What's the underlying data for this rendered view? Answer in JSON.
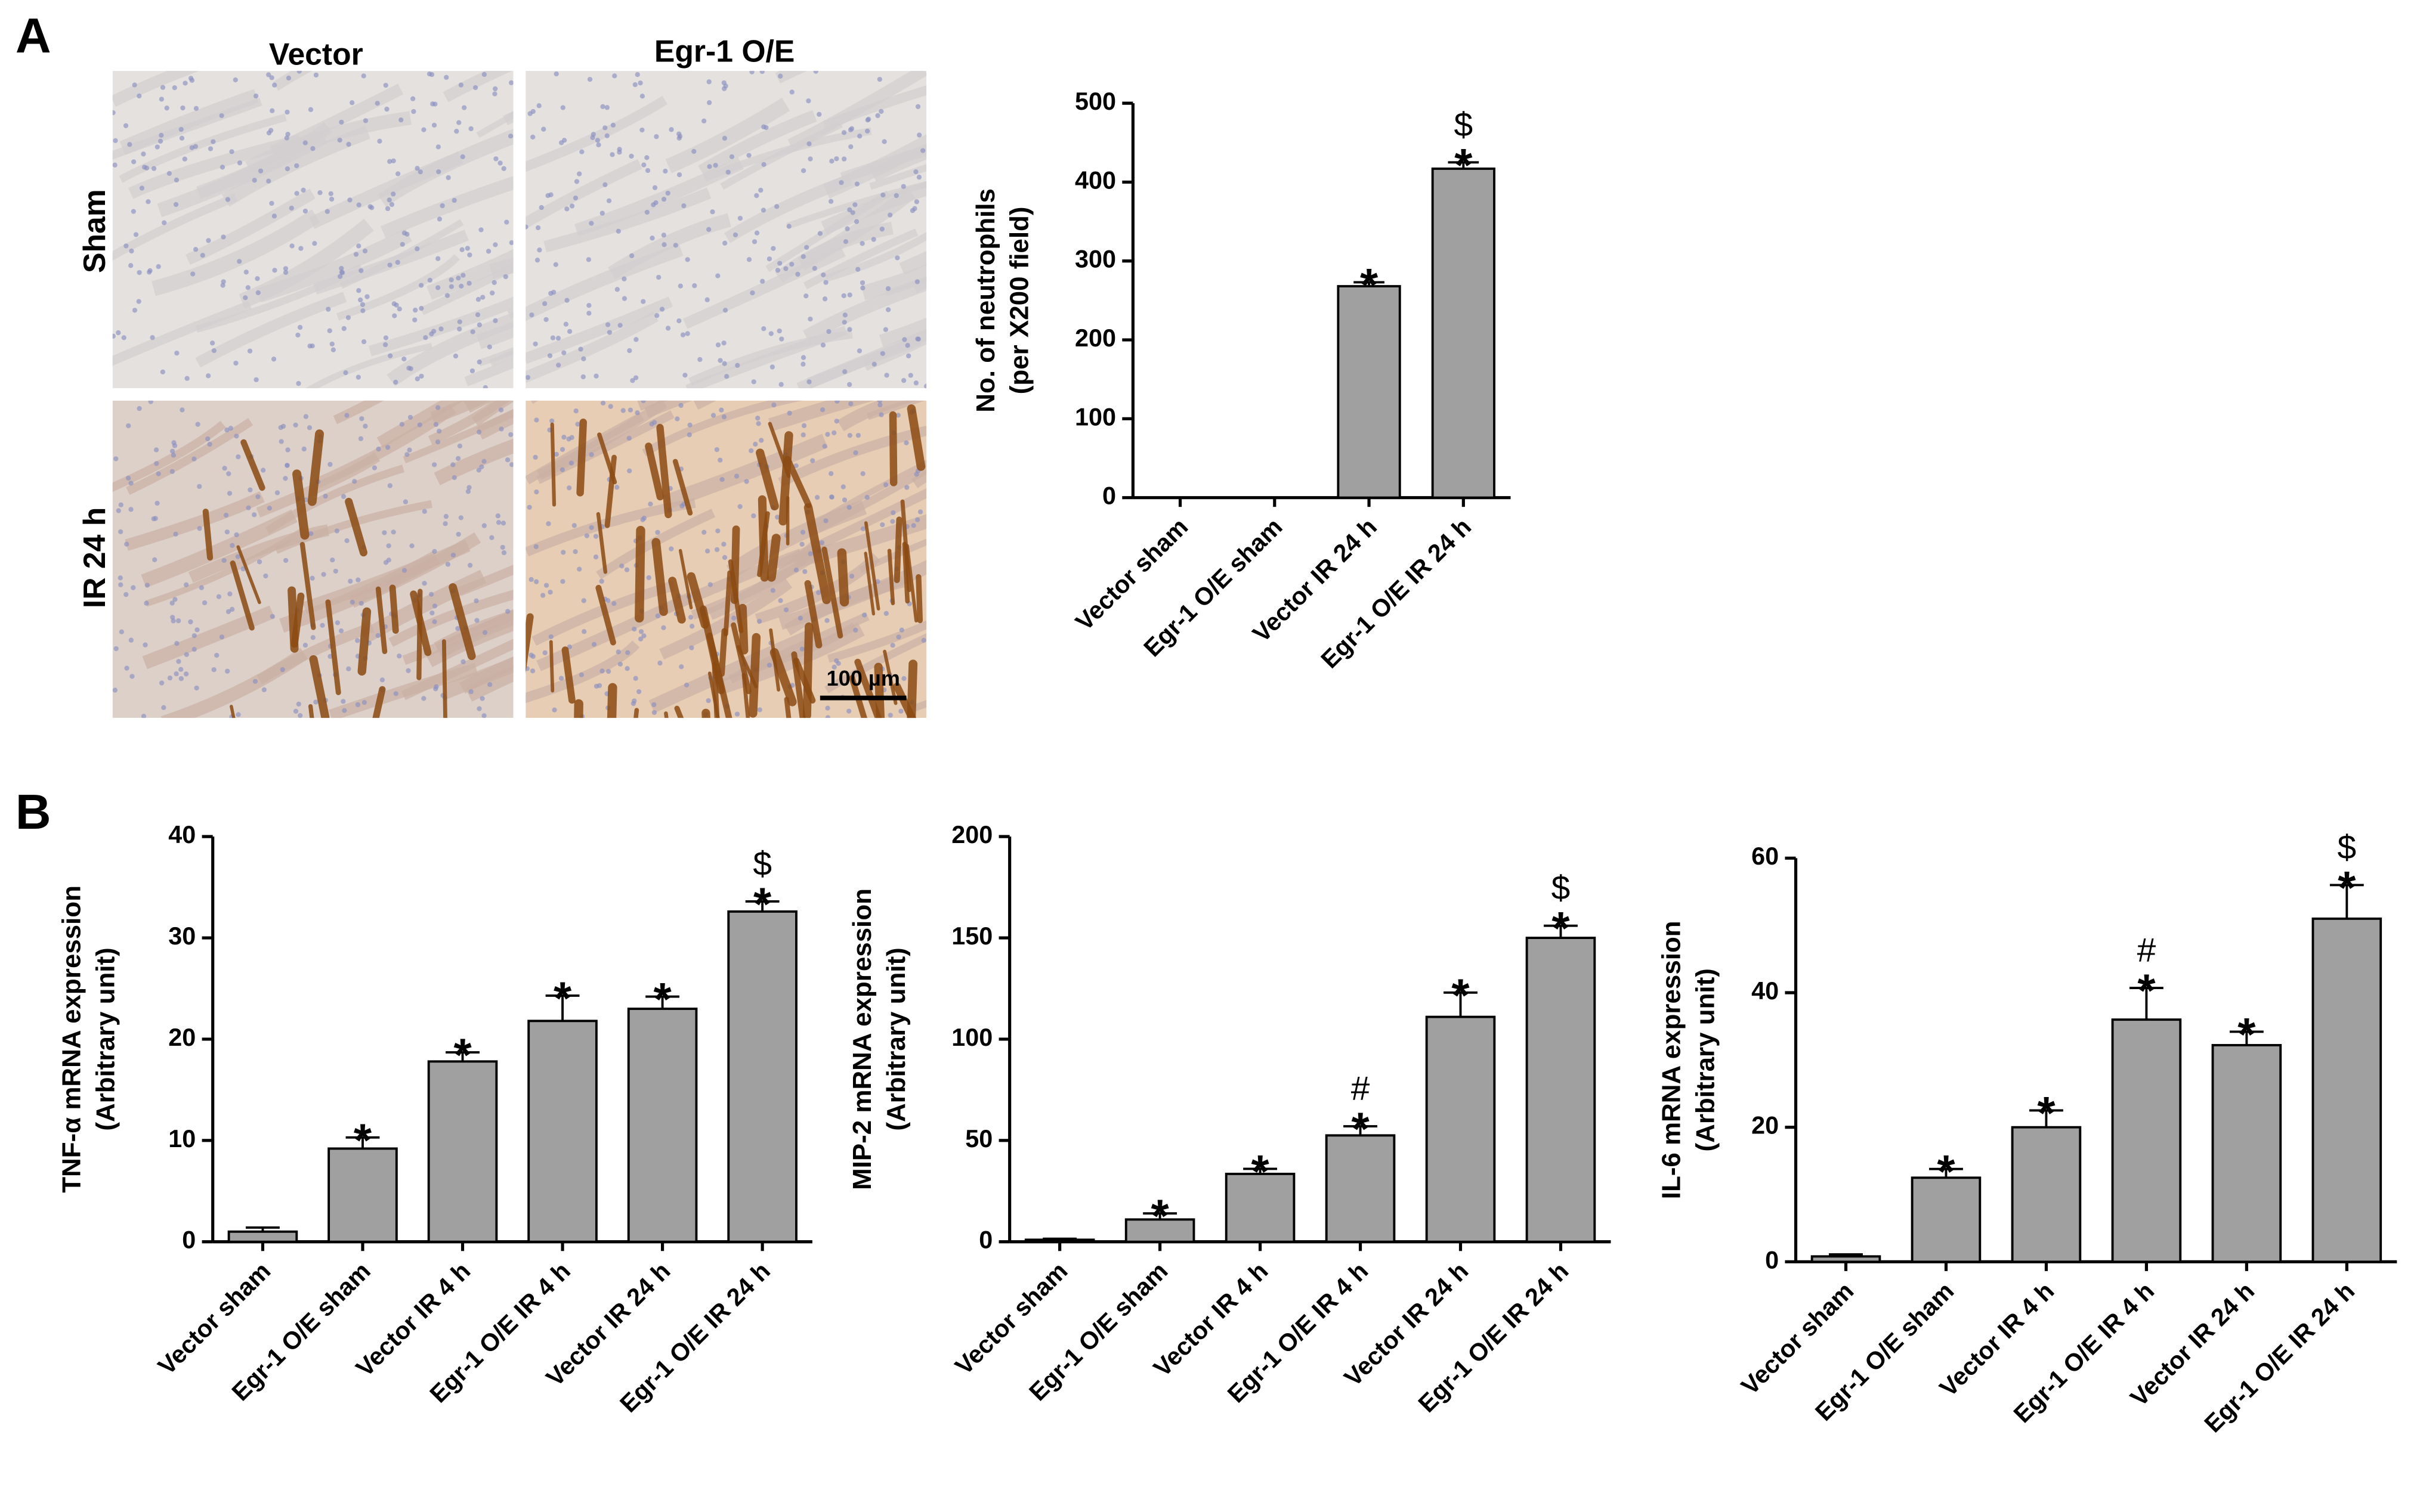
{
  "figure": {
    "panel_labels": [
      "A",
      "B"
    ],
    "micrographs": {
      "columns": [
        "Vector",
        "Egr-1 O/E"
      ],
      "rows": [
        "Sham",
        "IR 24 h"
      ],
      "scale_bar": "100 µm"
    }
  },
  "chart_data": [
    {
      "type": "bar",
      "ylabel": [
        "No. of neutrophils",
        "(per X200 field)"
      ],
      "categories": [
        "Vector sham",
        "Egr-1 O/E sham",
        "Vector IR 24 h",
        "Egr-1 O/E IR 24 h"
      ],
      "values": [
        0,
        0,
        268,
        417
      ],
      "errors": [
        0,
        0,
        5,
        8
      ],
      "annotations": [
        [],
        [],
        [
          "*"
        ],
        [
          "$",
          "*"
        ]
      ],
      "color": "#a0a0a0",
      "ylim": [
        0,
        500
      ],
      "yticks": [
        0,
        100,
        200,
        300,
        400,
        500
      ]
    },
    {
      "type": "bar",
      "ylabel": [
        "TNF-α mRNA expression",
        "(Arbitrary unit)"
      ],
      "categories": [
        "Vector sham",
        "Egr-1 O/E sham",
        "Vector IR 4 h",
        "Egr-1 O/E IR 4 h",
        "Vector IR 24 h",
        "Egr-1 O/E IR 24 h"
      ],
      "values": [
        1,
        9.2,
        17.8,
        21.8,
        23,
        32.6
      ],
      "errors": [
        0.4,
        1.1,
        0.9,
        2.5,
        1.2,
        1.0
      ],
      "annotations": [
        [],
        [
          "*"
        ],
        [
          "*"
        ],
        [
          "*"
        ],
        [
          "*"
        ],
        [
          "$",
          "*"
        ]
      ],
      "color": "#a0a0a0",
      "ylim": [
        0,
        40
      ],
      "yticks": [
        0,
        10,
        20,
        30,
        40
      ]
    },
    {
      "type": "bar",
      "ylabel": [
        "MIP-2 mRNA expression",
        "(Arbitrary unit)"
      ],
      "categories": [
        "Vector sham",
        "Egr-1 O/E sham",
        "Vector IR 4 h",
        "Egr-1 O/E IR 4 h",
        "Vector IR 24 h",
        "Egr-1 O/E IR 24 h"
      ],
      "values": [
        1,
        11,
        33.5,
        52.5,
        111,
        150
      ],
      "errors": [
        0.5,
        3,
        2.5,
        4.5,
        12,
        6
      ],
      "annotations": [
        [],
        [
          "*"
        ],
        [
          "*"
        ],
        [
          "#",
          "*"
        ],
        [
          "*"
        ],
        [
          "$",
          "*"
        ]
      ],
      "color": "#a0a0a0",
      "ylim": [
        0,
        200
      ],
      "yticks": [
        0,
        50,
        100,
        150,
        200
      ]
    },
    {
      "type": "bar",
      "ylabel": [
        "IL-6 mRNA expression",
        "(Arbitrary unit)"
      ],
      "categories": [
        "Vector sham",
        "Egr-1 O/E sham",
        "Vector IR 4 h",
        "Egr-1 O/E IR 4 h",
        "Vector IR 24 h",
        "Egr-1 O/E IR 24 h"
      ],
      "values": [
        0.8,
        12.5,
        20,
        36,
        32.2,
        51
      ],
      "errors": [
        0.3,
        1.3,
        2.5,
        4.7,
        2,
        5
      ],
      "annotations": [
        [],
        [
          "*"
        ],
        [
          "*"
        ],
        [
          "#",
          "*"
        ],
        [
          "*"
        ],
        [
          "$",
          "*"
        ]
      ],
      "color": "#a0a0a0",
      "ylim": [
        0,
        60
      ],
      "yticks": [
        0,
        20,
        40,
        60
      ]
    }
  ]
}
